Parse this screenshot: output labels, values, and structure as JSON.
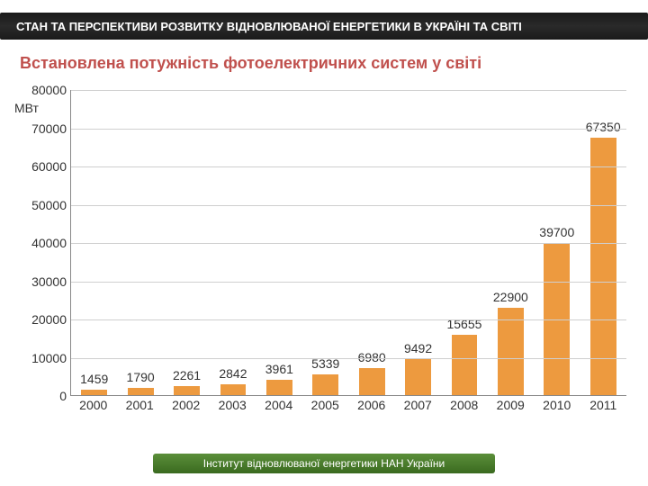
{
  "header": "СТАН ТА ПЕРСПЕКТИВИ РОЗВИТКУ ВІДНОВЛЮВАНОЇ ЕНЕРГЕТИКИ В УКРАЇНІ ТА СВІТІ",
  "subtitle": "Встановлена потужність фотоелектричних систем у світі",
  "footer": "Інститут відновлюваної енергетики НАН України",
  "chart": {
    "type": "bar",
    "y_unit": "МВт",
    "ylim": [
      0,
      80000
    ],
    "ytick_step": 10000,
    "yticks": [
      0,
      10000,
      20000,
      30000,
      40000,
      50000,
      60000,
      70000,
      80000
    ],
    "categories": [
      "2000",
      "2001",
      "2002",
      "2003",
      "2004",
      "2005",
      "2006",
      "2007",
      "2008",
      "2009",
      "2010",
      "2011"
    ],
    "values": [
      1459,
      1790,
      2261,
      2842,
      3961,
      5339,
      6980,
      9492,
      15655,
      22900,
      39700,
      67350
    ],
    "bar_color": "#ed9a3f",
    "grid_color": "#cfcfcf",
    "axis_color": "#888888",
    "title_color": "#c0504d",
    "label_fontsize": 14,
    "bar_width": 0.56
  }
}
